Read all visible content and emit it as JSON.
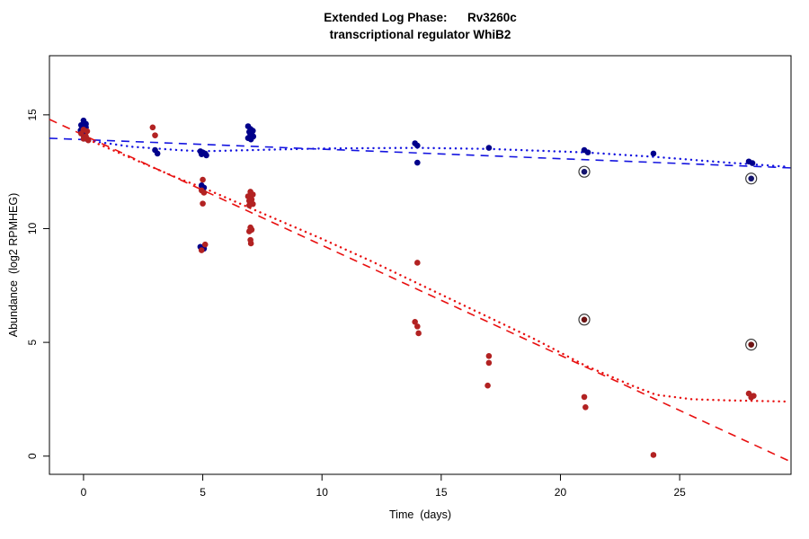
{
  "chart_data": {
    "type": "scatter",
    "title": "Extended Log Phase: Rv3260c transcriptional regulator WhiB2",
    "title_line1": "Extended Log Phase:      Rv3260c",
    "title_line2": "transcriptional regulator WhiB2",
    "xlabel": "Time  (days)",
    "ylabel": "Abundance  (log2 RPMHEG)",
    "xlim": [
      -1.43,
      29.67
    ],
    "ylim": [
      -0.8,
      17.6
    ],
    "x_ticks": [
      0,
      5,
      10,
      15,
      20,
      25
    ],
    "y_ticks": [
      0,
      5,
      10,
      15
    ],
    "grid": false,
    "legend": "none",
    "colors": {
      "blue_points": "#00008B",
      "red_points": "#B22222",
      "blue_line": "#1414E0",
      "red_line": "#E81010",
      "ring": "#3a3a3a"
    },
    "series": [
      {
        "name": "blue-condition",
        "color": "#00008B",
        "ring": false,
        "points": [
          [
            0,
            14.75
          ],
          [
            0.1,
            14.6
          ],
          [
            -0.1,
            14.55
          ],
          [
            0,
            14.5
          ],
          [
            0.1,
            14.45
          ],
          [
            0,
            14.4
          ],
          [
            -0.12,
            14.32
          ],
          [
            0.1,
            14.25
          ],
          [
            0,
            14.1
          ],
          [
            0.12,
            13.95
          ],
          [
            3,
            13.45
          ],
          [
            3.1,
            13.3
          ],
          [
            4.9,
            13.4
          ],
          [
            5,
            13.35
          ],
          [
            5.1,
            13.3
          ],
          [
            4.95,
            13.27
          ],
          [
            5.15,
            13.22
          ],
          [
            4.95,
            11.9
          ],
          [
            5.05,
            11.8
          ],
          [
            5,
            11.72
          ],
          [
            4.9,
            9.2
          ],
          [
            5.05,
            9.12
          ],
          [
            6.9,
            14.5
          ],
          [
            7,
            14.38
          ],
          [
            7.1,
            14.3
          ],
          [
            6.95,
            14.25
          ],
          [
            7.05,
            14.2
          ],
          [
            7,
            14.12
          ],
          [
            7.12,
            14.05
          ],
          [
            6.9,
            13.98
          ],
          [
            7.02,
            13.92
          ],
          [
            13.9,
            13.75
          ],
          [
            14,
            13.65
          ],
          [
            14,
            12.9
          ],
          [
            17,
            13.55
          ],
          [
            21,
            13.45
          ],
          [
            21.15,
            13.35
          ],
          [
            23.9,
            13.3
          ],
          [
            27.9,
            12.95
          ],
          [
            28.05,
            12.88
          ]
        ]
      },
      {
        "name": "red-condition",
        "color": "#B22222",
        "ring": false,
        "points": [
          [
            0,
            14.35
          ],
          [
            0.15,
            14.28
          ],
          [
            -0.1,
            14.18
          ],
          [
            0.1,
            14.05
          ],
          [
            0,
            13.95
          ],
          [
            0.2,
            13.88
          ],
          [
            2.9,
            14.45
          ],
          [
            3,
            14.1
          ],
          [
            5,
            12.15
          ],
          [
            4.95,
            11.68
          ],
          [
            5.05,
            11.58
          ],
          [
            5,
            11.1
          ],
          [
            5.1,
            9.3
          ],
          [
            4.95,
            9.05
          ],
          [
            7,
            11.62
          ],
          [
            7.1,
            11.5
          ],
          [
            6.9,
            11.42
          ],
          [
            7,
            11.35
          ],
          [
            7.05,
            11.28
          ],
          [
            6.95,
            11.22
          ],
          [
            7.02,
            11.15
          ],
          [
            7.1,
            11.08
          ],
          [
            6.95,
            11.02
          ],
          [
            7,
            10.05
          ],
          [
            7.05,
            9.95
          ],
          [
            6.95,
            9.88
          ],
          [
            7,
            9.5
          ],
          [
            7.02,
            9.35
          ],
          [
            14,
            8.5
          ],
          [
            13.9,
            5.9
          ],
          [
            14,
            5.7
          ],
          [
            14.05,
            5.4
          ],
          [
            17,
            4.4
          ],
          [
            17,
            4.1
          ],
          [
            16.95,
            3.1
          ],
          [
            21,
            2.6
          ],
          [
            21.05,
            2.15
          ],
          [
            23.9,
            0.05
          ],
          [
            27.9,
            2.75
          ],
          [
            28.1,
            2.65
          ],
          [
            28,
            2.58
          ]
        ]
      },
      {
        "name": "blue-flagged",
        "color": "#14146e",
        "ring": true,
        "points": [
          [
            21,
            12.5
          ],
          [
            28,
            12.2
          ]
        ]
      },
      {
        "name": "red-flagged",
        "color": "#6e1414",
        "ring": true,
        "points": [
          [
            21,
            6.0
          ],
          [
            28,
            4.9
          ]
        ]
      }
    ],
    "lines": [
      {
        "name": "blue-linear-fit",
        "color": "#1414E0",
        "style": "dashed",
        "points": [
          [
            -1.43,
            13.97
          ],
          [
            29.67,
            12.67
          ]
        ]
      },
      {
        "name": "red-linear-fit",
        "color": "#E81010",
        "style": "dashed",
        "points": [
          [
            -1.43,
            14.8
          ],
          [
            29.67,
            -0.25
          ]
        ]
      },
      {
        "name": "blue-smooth-fit",
        "color": "#1414E0",
        "style": "dotted",
        "points": [
          [
            0,
            13.9
          ],
          [
            2,
            13.6
          ],
          [
            4,
            13.45
          ],
          [
            5,
            13.4
          ],
          [
            7,
            13.45
          ],
          [
            10,
            13.52
          ],
          [
            14,
            13.55
          ],
          [
            17,
            13.5
          ],
          [
            21,
            13.35
          ],
          [
            24,
            13.15
          ],
          [
            27,
            12.9
          ],
          [
            29.5,
            12.72
          ]
        ]
      },
      {
        "name": "red-smooth-fit",
        "color": "#E81010",
        "style": "dotted",
        "points": [
          [
            0,
            14.0
          ],
          [
            2,
            13.1
          ],
          [
            4,
            12.2
          ],
          [
            5,
            11.8
          ],
          [
            7,
            10.9
          ],
          [
            10,
            9.55
          ],
          [
            12,
            8.6
          ],
          [
            14,
            7.6
          ],
          [
            17,
            6.1
          ],
          [
            19,
            5.1
          ],
          [
            21,
            4.0
          ],
          [
            23,
            3.1
          ],
          [
            24,
            2.7
          ],
          [
            25.5,
            2.5
          ],
          [
            27,
            2.45
          ],
          [
            29.5,
            2.4
          ]
        ]
      }
    ]
  }
}
